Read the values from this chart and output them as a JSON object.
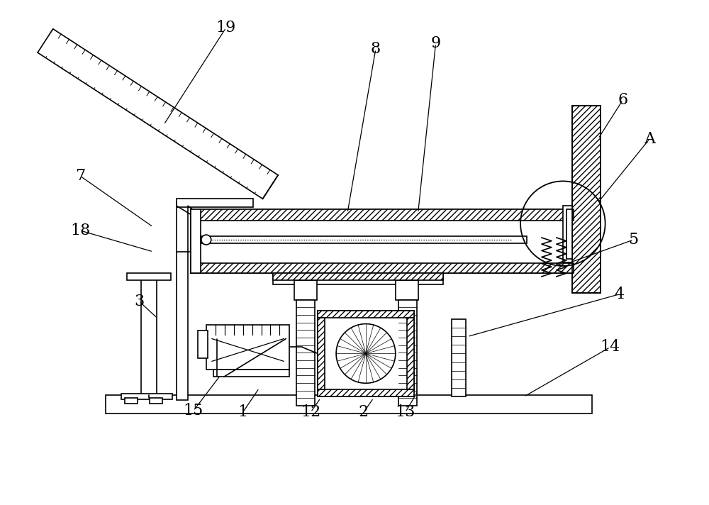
{
  "bg_color": "#ffffff",
  "line_color": "#000000",
  "fig_width": 10.0,
  "fig_height": 7.12,
  "lw": 1.2,
  "label_fs": 16,
  "label_data": [
    [
      "19",
      318,
      38,
      230,
      175
    ],
    [
      "8",
      530,
      68,
      490,
      300
    ],
    [
      "9",
      615,
      60,
      590,
      300
    ],
    [
      "6",
      880,
      140,
      845,
      195
    ],
    [
      "A",
      918,
      195,
      845,
      285
    ],
    [
      "7",
      112,
      248,
      215,
      320
    ],
    [
      "18",
      112,
      325,
      215,
      355
    ],
    [
      "5",
      895,
      338,
      800,
      372
    ],
    [
      "3",
      195,
      425,
      222,
      450
    ],
    [
      "4",
      875,
      415,
      660,
      475
    ],
    [
      "14",
      862,
      490,
      740,
      560
    ],
    [
      "15",
      272,
      580,
      310,
      530
    ],
    [
      "1",
      342,
      582,
      365,
      548
    ],
    [
      "12",
      438,
      582,
      452,
      562
    ],
    [
      "2",
      513,
      582,
      527,
      562
    ],
    [
      "13",
      572,
      582,
      590,
      552
    ]
  ]
}
